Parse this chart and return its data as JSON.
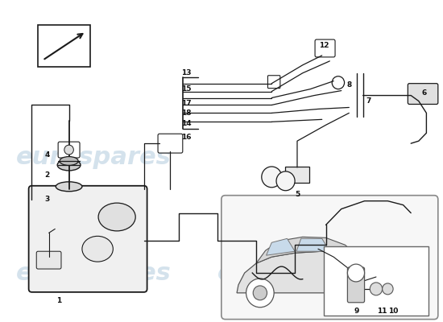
{
  "bg_color": "#ffffff",
  "watermark_text": "eurospares",
  "watermark_color": "#b8cfe0",
  "line_color": "#1a1a1a",
  "label_color": "#111111",
  "label_fontsize": 6.5
}
